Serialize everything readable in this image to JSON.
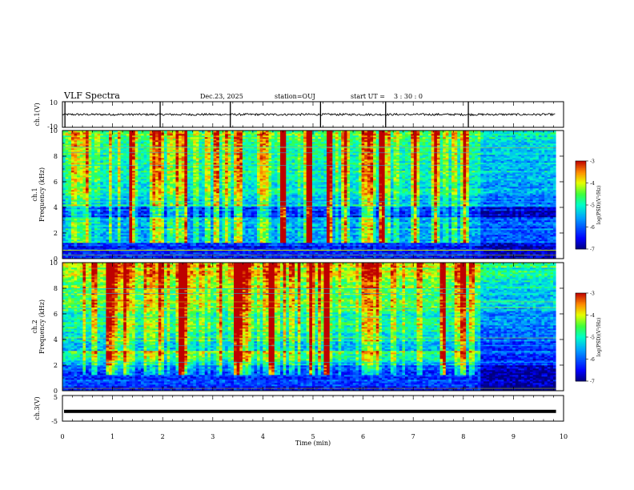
{
  "header": {
    "title": "VLF Spectra",
    "date": "Dec.23, 2025",
    "station": "station=OUJ",
    "start_label": "start  UT =",
    "start_time": "3 : 30 : 0"
  },
  "chart_data": [
    {
      "type": "line",
      "name": "ch1-waveform",
      "ylabel": "ch.1(V)",
      "ylim": [
        -10,
        10
      ],
      "ytick_labels": [
        "10",
        "-10"
      ],
      "xlim": [
        0,
        10
      ]
    },
    {
      "type": "heatmap",
      "name": "ch1-spectrogram",
      "ylabel": "ch.1\nFrequency (kHz)",
      "ylim": [
        0,
        10
      ],
      "yticks": [
        0,
        2,
        4,
        6,
        8,
        10
      ],
      "ytick_labels": [
        "0",
        "2",
        "4",
        "6",
        "8",
        "10"
      ],
      "xlim": [
        0,
        10
      ],
      "colorbar": {
        "label": "log(PSD)(V²/Hz)",
        "range": [
          -7,
          -3
        ],
        "tick_labels": [
          "-3",
          "-4",
          "-5",
          "-6",
          "-7"
        ]
      },
      "features": {
        "data_end_min": 9.85,
        "regime_change_min": 8.35,
        "quiet_band_khz": [
          3.2,
          4.1
        ],
        "noise_band_khz": [
          0,
          1.2
        ]
      }
    },
    {
      "type": "heatmap",
      "name": "ch2-spectrogram",
      "ylabel": "ch.2\nFrequency (kHz)",
      "ylim": [
        0,
        10
      ],
      "yticks": [
        0,
        2,
        4,
        6,
        8,
        10
      ],
      "ytick_labels": [
        "0",
        "2",
        "4",
        "6",
        "8",
        "10"
      ],
      "xlim": [
        0,
        10
      ],
      "colorbar": {
        "label": "log(PSD)(V²/Hz)",
        "range": [
          -7,
          -3
        ],
        "tick_labels": [
          "-3",
          "-4",
          "-5",
          "-6",
          "-7"
        ]
      },
      "features": {
        "data_end_min": 9.85,
        "regime_change_min": 8.35,
        "band_khz": [
          [
            2.4,
            3.1
          ],
          [
            4.6,
            5.4
          ]
        ],
        "band_level_log_psd": -4.8
      }
    },
    {
      "type": "line",
      "name": "ch3-waveform",
      "ylabel": "ch.3(V)",
      "ylim": [
        -5,
        5
      ],
      "ytick_labels": [
        "5",
        "-5"
      ],
      "constant_value": -1.2,
      "xlim": [
        0,
        10
      ]
    }
  ],
  "xaxis": {
    "label": "Time (min)",
    "ticks": [
      0,
      1,
      2,
      3,
      4,
      5,
      6,
      7,
      8,
      9,
      10
    ],
    "tick_labels": [
      "0",
      "1",
      "2",
      "3",
      "4",
      "5",
      "6",
      "7",
      "8",
      "9",
      "10"
    ]
  }
}
